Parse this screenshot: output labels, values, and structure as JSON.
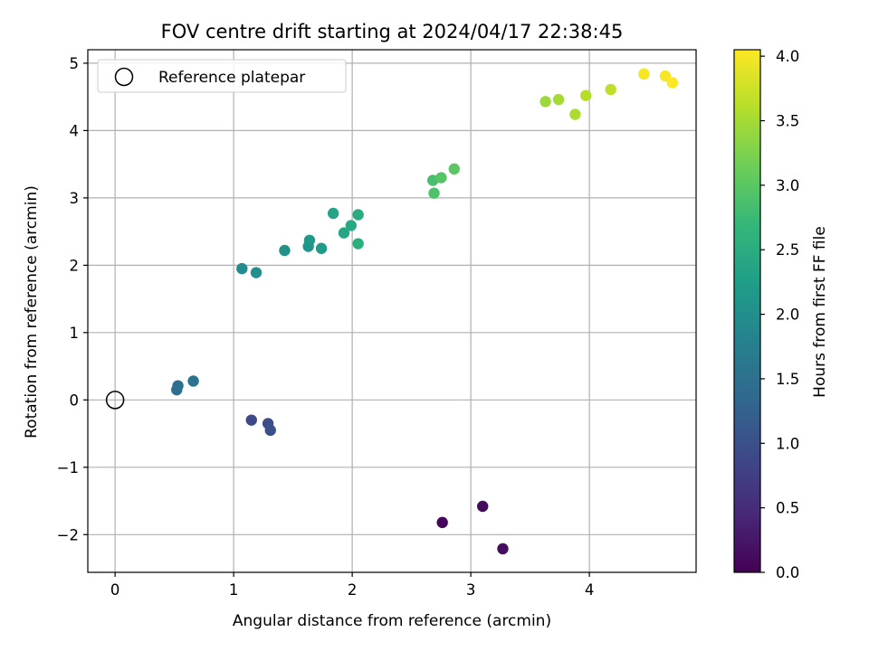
{
  "chart_data": {
    "type": "scatter",
    "title": "FOV centre drift starting at 2024/04/17 22:38:45",
    "xlabel": "Angular distance from reference (arcmin)",
    "ylabel": "Rotation from reference (arcmin)",
    "xlim": [
      -0.23,
      4.9
    ],
    "ylim": [
      -2.56,
      5.2
    ],
    "xticks": [
      0,
      1,
      2,
      3,
      4
    ],
    "yticks": [
      -2,
      -1,
      0,
      1,
      2,
      3,
      4,
      5
    ],
    "ytick_labels": [
      "−2",
      "−1",
      "0",
      "1",
      "2",
      "3",
      "4",
      "5"
    ],
    "grid": true,
    "legend": {
      "location": "top-left",
      "entries": [
        {
          "label": "Reference platepar",
          "marker": "open-circle"
        }
      ]
    },
    "reference_point": {
      "x": 0,
      "y": 0
    },
    "colorbar": {
      "label": "Hours from first FF file",
      "range": [
        0.0,
        4.05
      ],
      "ticks": [
        0.0,
        0.5,
        1.0,
        1.5,
        2.0,
        2.5,
        3.0,
        3.5,
        4.0
      ],
      "tick_labels": [
        "0.0",
        "0.5",
        "1.0",
        "1.5",
        "2.0",
        "2.5",
        "3.0",
        "3.5",
        "4.0"
      ],
      "colormap": "viridis",
      "colormap_stops": [
        "#440154",
        "#482878",
        "#3e4989",
        "#31688e",
        "#26828e",
        "#1f9e89",
        "#35b779",
        "#6ece58",
        "#b5de2b",
        "#fde725"
      ]
    },
    "points": [
      {
        "x": 2.76,
        "y": -1.82,
        "c": 0.05
      },
      {
        "x": 3.1,
        "y": -1.58,
        "c": 0.1
      },
      {
        "x": 3.27,
        "y": -2.21,
        "c": 0.15
      },
      {
        "x": 1.15,
        "y": -0.3,
        "c": 0.9
      },
      {
        "x": 1.29,
        "y": -0.35,
        "c": 0.95
      },
      {
        "x": 1.31,
        "y": -0.45,
        "c": 1.0
      },
      {
        "x": 0.52,
        "y": 0.15,
        "c": 1.45
      },
      {
        "x": 0.53,
        "y": 0.21,
        "c": 1.5
      },
      {
        "x": 0.66,
        "y": 0.28,
        "c": 1.55
      },
      {
        "x": 1.07,
        "y": 1.95,
        "c": 1.95
      },
      {
        "x": 1.19,
        "y": 1.89,
        "c": 2.0
      },
      {
        "x": 1.43,
        "y": 2.22,
        "c": 2.05
      },
      {
        "x": 1.63,
        "y": 2.28,
        "c": 2.1
      },
      {
        "x": 1.64,
        "y": 2.37,
        "c": 2.15
      },
      {
        "x": 1.74,
        "y": 2.25,
        "c": 2.2
      },
      {
        "x": 1.84,
        "y": 2.77,
        "c": 2.35
      },
      {
        "x": 1.93,
        "y": 2.48,
        "c": 2.4
      },
      {
        "x": 1.99,
        "y": 2.59,
        "c": 2.45
      },
      {
        "x": 2.05,
        "y": 2.75,
        "c": 2.5
      },
      {
        "x": 2.05,
        "y": 2.32,
        "c": 2.55
      },
      {
        "x": 2.68,
        "y": 3.26,
        "c": 2.85
      },
      {
        "x": 2.69,
        "y": 3.07,
        "c": 2.9
      },
      {
        "x": 2.75,
        "y": 3.3,
        "c": 2.95
      },
      {
        "x": 2.86,
        "y": 3.43,
        "c": 3.0
      },
      {
        "x": 3.63,
        "y": 4.43,
        "c": 3.45
      },
      {
        "x": 3.74,
        "y": 4.46,
        "c": 3.5
      },
      {
        "x": 3.88,
        "y": 4.24,
        "c": 3.55
      },
      {
        "x": 3.97,
        "y": 4.52,
        "c": 3.6
      },
      {
        "x": 4.18,
        "y": 4.61,
        "c": 3.65
      },
      {
        "x": 4.46,
        "y": 4.84,
        "c": 4.0
      },
      {
        "x": 4.64,
        "y": 4.81,
        "c": 4.02
      },
      {
        "x": 4.7,
        "y": 4.71,
        "c": 4.05
      }
    ]
  }
}
